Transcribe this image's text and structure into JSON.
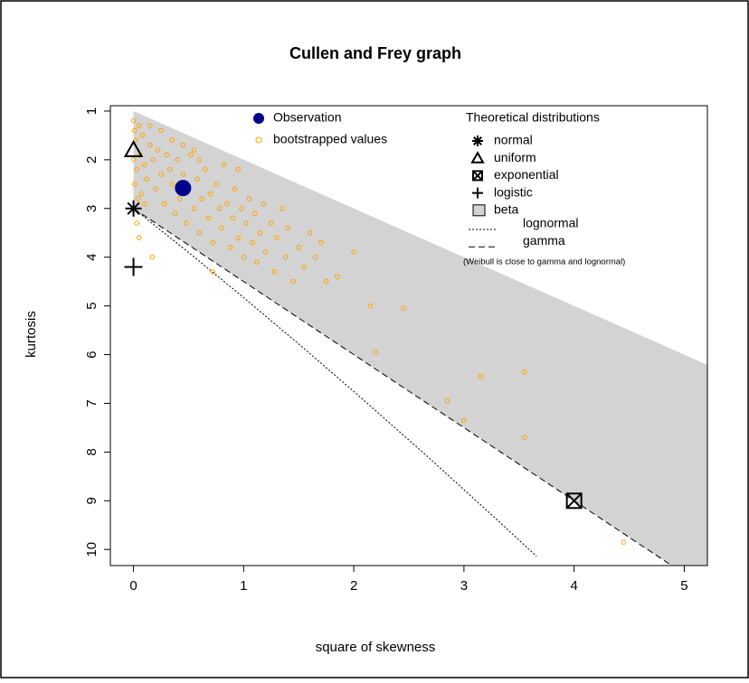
{
  "chart_data": {
    "type": "scatter",
    "title": "Cullen and Frey graph",
    "xlabel": "square of skewness",
    "ylabel": "kurtosis",
    "xlim": [
      -0.21,
      5.21
    ],
    "ylim": [
      0.89,
      10.33
    ],
    "y_reversed": true,
    "xticks": [
      0,
      1,
      2,
      3,
      4,
      5
    ],
    "yticks": [
      1,
      2,
      3,
      4,
      5,
      6,
      7,
      8,
      9,
      10
    ],
    "series": [
      {
        "name": "Observation",
        "color": "#00008b",
        "marker": "filled-circle",
        "x": [
          0.45
        ],
        "y": [
          2.58
        ]
      },
      {
        "name": "bootstrapped values",
        "color": "#ffa500",
        "marker": "open-circle",
        "x": [
          0.0,
          0.01,
          0.02,
          0.0,
          0.03,
          0.01,
          0.04,
          0.05,
          0.06,
          0.08,
          0.1,
          0.12,
          0.07,
          0.15,
          0.18,
          0.2,
          0.22,
          0.25,
          0.28,
          0.3,
          0.33,
          0.35,
          0.38,
          0.4,
          0.42,
          0.45,
          0.48,
          0.5,
          0.52,
          0.55,
          0.58,
          0.6,
          0.62,
          0.65,
          0.68,
          0.7,
          0.72,
          0.75,
          0.78,
          0.8,
          0.82,
          0.85,
          0.88,
          0.9,
          0.92,
          0.95,
          0.98,
          1.0,
          1.02,
          1.05,
          1.08,
          1.1,
          1.12,
          1.15,
          1.18,
          1.2,
          1.25,
          1.28,
          1.3,
          1.35,
          1.38,
          1.4,
          1.45,
          1.5,
          1.55,
          1.6,
          1.65,
          1.7,
          0.35,
          0.45,
          0.55,
          0.1,
          0.05,
          0.03,
          0.17,
          0.72,
          1.85,
          2.0,
          1.75,
          2.15,
          2.45,
          2.2,
          2.85,
          3.0,
          3.15,
          3.55,
          3.55,
          4.45,
          0.95,
          0.6,
          0.25,
          0.15
        ],
        "y": [
          1.2,
          1.4,
          1.6,
          2.0,
          2.2,
          2.5,
          2.8,
          1.3,
          1.9,
          1.5,
          2.1,
          2.4,
          2.7,
          1.7,
          2.0,
          2.6,
          1.8,
          2.3,
          2.9,
          1.9,
          2.2,
          2.5,
          3.1,
          2.0,
          2.8,
          2.3,
          3.3,
          2.6,
          1.9,
          3.0,
          2.4,
          3.5,
          2.8,
          2.2,
          3.2,
          2.7,
          3.7,
          2.5,
          3.0,
          3.4,
          2.1,
          2.9,
          3.8,
          3.2,
          2.6,
          3.6,
          3.0,
          4.0,
          3.3,
          2.8,
          3.7,
          3.1,
          4.1,
          3.5,
          2.9,
          3.9,
          3.3,
          4.3,
          3.6,
          3.0,
          4.0,
          3.4,
          4.5,
          3.8,
          4.2,
          3.5,
          4.0,
          3.7,
          1.6,
          1.7,
          1.8,
          2.9,
          3.6,
          3.3,
          4.0,
          4.3,
          4.4,
          3.9,
          4.5,
          5.0,
          5.05,
          5.95,
          6.95,
          7.35,
          6.45,
          6.35,
          7.7,
          9.85,
          2.2,
          2.0,
          1.4,
          1.3
        ]
      }
    ],
    "theoretical": {
      "title": "Theoretical distributions",
      "items": [
        {
          "name": "normal",
          "marker": "asterisk",
          "x": [
            0
          ],
          "y": [
            3
          ]
        },
        {
          "name": "uniform",
          "marker": "triangle",
          "x": [
            0
          ],
          "y": [
            1.8
          ]
        },
        {
          "name": "exponential",
          "marker": "boxed-x",
          "x": [
            4
          ],
          "y": [
            9
          ]
        },
        {
          "name": "logistic",
          "marker": "plus",
          "x": [
            0
          ],
          "y": [
            4.2
          ]
        },
        {
          "name": "beta",
          "marker": "region",
          "color": "#d3d3d3",
          "x": [
            0,
            5.5
          ],
          "y_upper": [
            1,
            6.5
          ],
          "y_lower": [
            3,
            11.25
          ]
        },
        {
          "name": "lognormal",
          "marker": "dotted",
          "x": [
            0,
            0.465,
            0.961,
            1.488,
            2.048,
            2.641,
            3.267,
            3.659
          ],
          "y": [
            3,
            3.838,
            4.756,
            5.758,
            6.85,
            8.035,
            9.32,
            10.141
          ]
        },
        {
          "name": "gamma",
          "marker": "dashed",
          "x": [
            0,
            5.5
          ],
          "y": [
            3,
            11.25
          ]
        }
      ],
      "note": "(Weibull is close to gamma and lognormal)"
    }
  }
}
